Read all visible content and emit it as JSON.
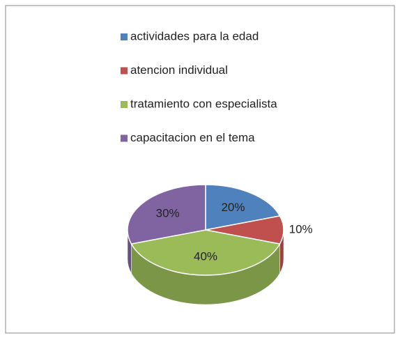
{
  "chart_data": {
    "type": "pie",
    "categories": [
      "actividades para la edad",
      "atencion individual",
      "tratamiento con especialista",
      "capacitacion en el tema"
    ],
    "values": [
      20,
      10,
      40,
      30
    ],
    "value_labels": [
      "20%",
      "10%",
      "40%",
      "30%"
    ],
    "colors": [
      "#4f81bd",
      "#c0504d",
      "#9bbb59",
      "#8064a2"
    ],
    "legend": "top"
  }
}
